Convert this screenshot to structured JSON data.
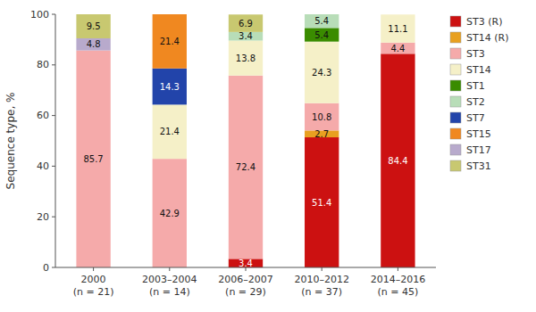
{
  "chart_data": {
    "type": "bar",
    "stacked": true,
    "data_labels": true,
    "grid": false,
    "legend": "right",
    "y_label": "Sequence type, %",
    "categories": [
      "2000\n(n = 21)",
      "2003–2004\n(n = 14)",
      "2006–2007\n(n = 29)",
      "2010–2012\n(n = 37)",
      "2014–2016\n(n = 45)"
    ],
    "ylim": [
      0,
      100
    ],
    "yticks": [
      0,
      20,
      40,
      60,
      80,
      100
    ],
    "series": [
      {
        "name": "ST3 (R)",
        "color": "#cc1111",
        "values": [
          0,
          0,
          3.4,
          51.4,
          84.4
        ]
      },
      {
        "name": "ST14 (R)",
        "color": "#e8a020",
        "values": [
          0,
          0,
          0,
          2.7,
          0
        ]
      },
      {
        "name": "ST3",
        "color": "#f5aaaa",
        "values": [
          85.7,
          42.9,
          72.4,
          10.8,
          4.4
        ]
      },
      {
        "name": "ST14",
        "color": "#f5f0c8",
        "values": [
          0,
          21.4,
          13.8,
          24.3,
          11.1
        ]
      },
      {
        "name": "ST1",
        "color": "#3a8c00",
        "values": [
          0,
          0,
          0,
          5.4,
          0
        ]
      },
      {
        "name": "ST2",
        "color": "#b8ddb8",
        "values": [
          0,
          0,
          3.4,
          5.4,
          0
        ]
      },
      {
        "name": "ST7",
        "color": "#2244aa",
        "values": [
          0,
          14.3,
          0,
          0,
          0
        ]
      },
      {
        "name": "ST15",
        "color": "#f08820",
        "values": [
          0,
          21.4,
          0,
          0,
          0
        ]
      },
      {
        "name": "ST17",
        "color": "#b8aacc",
        "values": [
          4.8,
          0,
          0,
          0,
          0
        ]
      },
      {
        "name": "ST31",
        "color": "#c8c870",
        "values": [
          9.5,
          0,
          6.9,
          0,
          0
        ]
      }
    ]
  }
}
